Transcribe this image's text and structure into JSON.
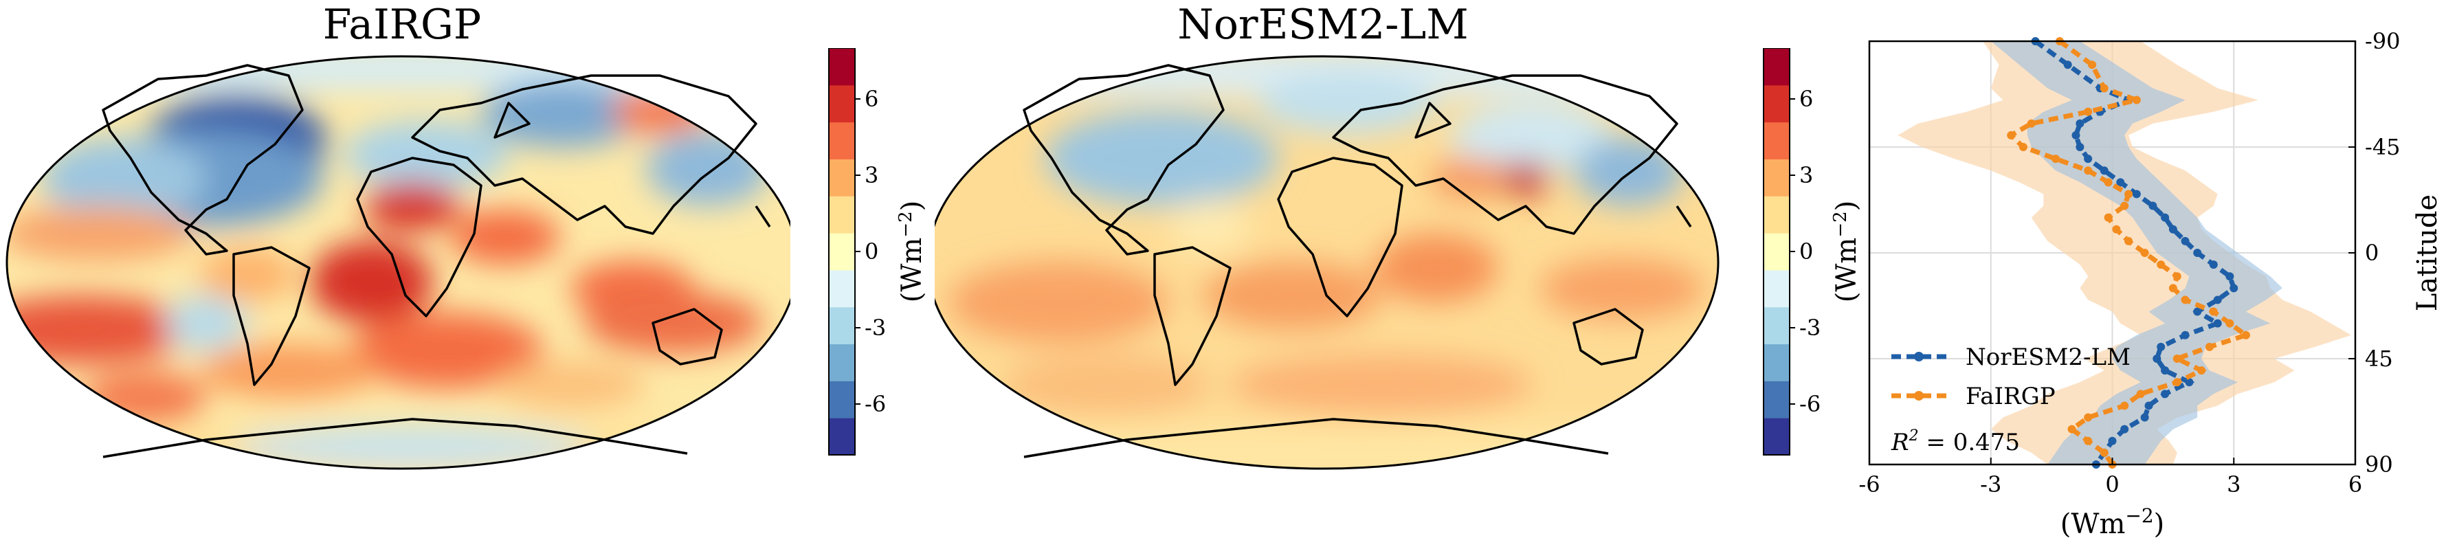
{
  "colorbar": {
    "ticks": [
      "6",
      "3",
      "0",
      "-3",
      "-6"
    ],
    "tick_values": [
      6,
      3,
      0,
      -3,
      -6
    ],
    "range": [
      -8,
      8
    ],
    "label": "(Wm",
    "label_sup": "−2",
    "label_close": ")",
    "colors": [
      "#313695",
      "#4575b4",
      "#74add1",
      "#abd9e9",
      "#e0f3f8",
      "#ffffbf",
      "#fee090",
      "#fdae61",
      "#f46d43",
      "#d73027",
      "#a50026"
    ]
  },
  "map_left": {
    "title": "FaIRGP"
  },
  "map_right": {
    "title": "NorESM2-LM"
  },
  "profile": {
    "x_tick_labels": [
      "-6",
      "-3",
      "0",
      "3",
      "6"
    ],
    "y_tick_labels": [
      "90",
      "45",
      "0",
      "-45",
      "-90"
    ],
    "xlabel": "(Wm",
    "xlabel_sup": "−2",
    "xlabel_close": ")",
    "ylabel": "Latitude",
    "r2_label": "R",
    "r2_sup": "2",
    "r2_value": " = 0.475",
    "colors": {
      "noresm": "#1f5fa8",
      "fairgp": "#f28c1f",
      "noresm_band": "#9dbfe0",
      "fairgp_band": "#fbd3a6",
      "overlap": "#b9b7ad"
    }
  },
  "chart_data": {
    "type": "line",
    "xlim": [
      -6,
      6
    ],
    "ylim": [
      -90,
      90
    ],
    "x_ticks": [
      -6,
      -3,
      0,
      3,
      6
    ],
    "y_ticks": [
      -90,
      -45,
      0,
      45,
      90
    ],
    "grid": true,
    "legend": "center-left",
    "series": [
      {
        "name": "NorESM2-LM",
        "color": "#1f5fa8",
        "lat": [
          90,
          80,
          70,
          65,
          60,
          55,
          50,
          45,
          40,
          35,
          30,
          25,
          20,
          15,
          10,
          5,
          0,
          -5,
          -10,
          -15,
          -20,
          -25,
          -30,
          -35,
          -40,
          -45,
          -50,
          -55,
          -60,
          -65,
          -70,
          -75,
          -80,
          -85,
          -90
        ],
        "mean": [
          -1.9,
          -1.1,
          -0.3,
          0.4,
          -0.3,
          -0.8,
          -0.9,
          -0.8,
          -0.6,
          -0.2,
          0.2,
          0.6,
          1.0,
          1.3,
          1.5,
          1.8,
          2.1,
          2.5,
          2.9,
          3.0,
          2.6,
          2.1,
          2.6,
          1.8,
          1.2,
          1.1,
          1.3,
          1.9,
          1.3,
          0.9,
          0.8,
          0.3,
          0.0,
          -0.2,
          -0.4
        ],
        "lower": [
          -3.0,
          -2.3,
          -1.6,
          -1.0,
          -1.7,
          -2.1,
          -2.1,
          -2.0,
          -1.7,
          -1.4,
          -0.8,
          -0.3,
          0.2,
          0.5,
          0.7,
          0.9,
          1.1,
          1.5,
          1.9,
          1.8,
          1.4,
          0.9,
          1.3,
          0.6,
          0.1,
          0.0,
          0.2,
          0.7,
          0.1,
          -0.3,
          -0.5,
          -0.9,
          -1.2,
          -1.4,
          -1.6
        ],
        "upper": [
          -0.8,
          0.1,
          1.0,
          1.8,
          1.2,
          0.5,
          0.3,
          0.4,
          0.6,
          0.9,
          1.2,
          1.5,
          1.8,
          2.1,
          2.3,
          2.7,
          3.1,
          3.5,
          3.9,
          4.2,
          3.8,
          3.3,
          3.9,
          3.0,
          2.3,
          2.2,
          2.4,
          3.1,
          2.5,
          2.1,
          2.1,
          1.5,
          1.2,
          1.0,
          0.8
        ]
      },
      {
        "name": "FaIRGP",
        "color": "#f28c1f",
        "lat": [
          90,
          80,
          70,
          65,
          60,
          55,
          50,
          45,
          40,
          35,
          30,
          25,
          20,
          15,
          10,
          5,
          0,
          -5,
          -10,
          -15,
          -20,
          -25,
          -30,
          -35,
          -40,
          -45,
          -50,
          -55,
          -60,
          -65,
          -70,
          -75,
          -80,
          -85,
          -90
        ],
        "mean": [
          -1.3,
          -0.5,
          -0.2,
          0.6,
          -0.6,
          -2.0,
          -2.5,
          -2.2,
          -1.4,
          -0.6,
          -0.1,
          0.4,
          0.3,
          -0.1,
          0.1,
          0.4,
          0.8,
          1.2,
          1.6,
          1.5,
          1.8,
          2.5,
          2.9,
          3.3,
          2.4,
          1.6,
          2.2,
          1.6,
          0.7,
          0.3,
          -0.6,
          -1.0,
          -0.6,
          -0.2,
          0.0
        ],
        "lower": [
          -3.2,
          -2.8,
          -3.0,
          -2.7,
          -3.6,
          -4.8,
          -5.3,
          -4.7,
          -3.9,
          -3.0,
          -2.3,
          -1.7,
          -1.7,
          -2.0,
          -1.8,
          -1.6,
          -1.2,
          -0.8,
          -0.6,
          -0.8,
          -0.6,
          0.0,
          0.2,
          0.7,
          0.0,
          -0.7,
          -0.2,
          -0.8,
          -1.6,
          -2.0,
          -2.7,
          -3.0,
          -2.6,
          -2.0,
          -1.6
        ],
        "upper": [
          0.7,
          1.6,
          2.6,
          3.6,
          2.5,
          1.0,
          0.4,
          0.5,
          1.1,
          1.8,
          2.2,
          2.6,
          2.5,
          2.1,
          2.2,
          2.5,
          2.9,
          3.3,
          3.8,
          3.9,
          4.2,
          4.9,
          5.4,
          5.9,
          5.0,
          4.0,
          4.5,
          4.0,
          3.1,
          2.6,
          1.6,
          1.1,
          1.4,
          1.6,
          1.5
        ]
      }
    ],
    "annotation": "R^2 = 0.475"
  }
}
